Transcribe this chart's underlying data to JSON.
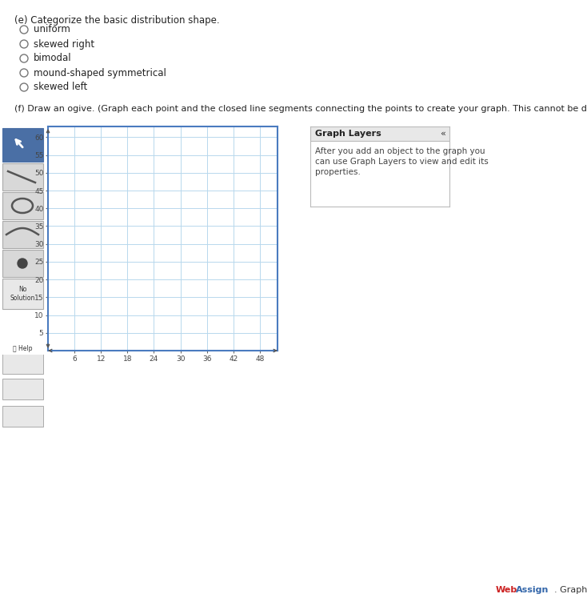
{
  "bg_color": "#d8d8d8",
  "page_bg": "#ffffff",
  "title_e": "(e) Categorize the basic distribution shape.",
  "options_e": [
    "uniform",
    "skewed right",
    "bimodal",
    "mound-shaped symmetrical",
    "skewed left"
  ],
  "title_f": "(f) Draw an ogive. (Graph each point and the closed line segments connecting the points to create your graph. This cannot be done in SALT.)",
  "graph_layers_title": "Graph Layers",
  "graph_layers_text": "After you add an object to the graph you\ncan use Graph Layers to view and edit its\nproperties.",
  "x_ticks": [
    6,
    12,
    18,
    24,
    30,
    36,
    42,
    48
  ],
  "y_ticks": [
    5,
    10,
    15,
    20,
    25,
    30,
    35,
    40,
    45,
    50,
    55,
    60
  ],
  "x_min": 0,
  "x_max": 52,
  "y_min": 0,
  "y_max": 63,
  "grid_color": "#b8d8ed",
  "plot_bg": "#ffffff",
  "toolbar_bg": "#d8d8d8",
  "toolbar_blue": "#4a6fa5",
  "border_blue": "#4a7bbf",
  "web_red": "#cc2222",
  "assign_blue": "#3366aa"
}
